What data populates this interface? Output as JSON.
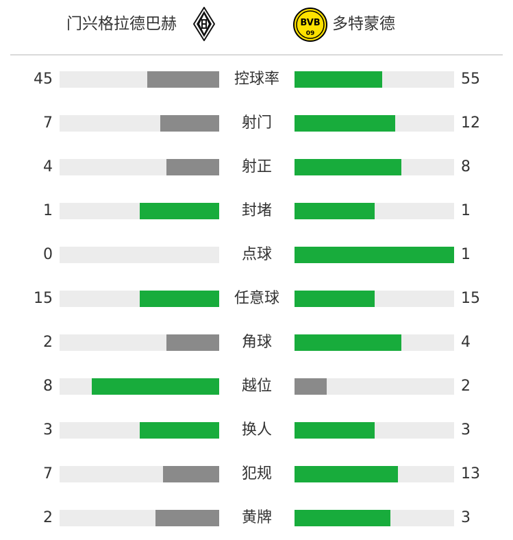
{
  "home_team": {
    "name": "门兴格拉德巴赫",
    "logo_icon": "gladbach-crest-icon"
  },
  "away_team": {
    "name": "多特蒙德",
    "logo_icon": "bvb-crest-icon",
    "logo_text": "BVB",
    "logo_year": "09"
  },
  "colors": {
    "winner": "#18ac3c",
    "loser": "#8a8a8a",
    "track": "#ececec"
  },
  "stats": [
    {
      "label": "控球率",
      "home": 45,
      "away": 55,
      "home_fill": 0.45,
      "away_fill": 0.55,
      "home_color": "grey",
      "away_color": "green"
    },
    {
      "label": "射门",
      "home": 7,
      "away": 12,
      "home_fill": 0.37,
      "away_fill": 0.63,
      "home_color": "grey",
      "away_color": "green"
    },
    {
      "label": "射正",
      "home": 4,
      "away": 8,
      "home_fill": 0.33,
      "away_fill": 0.67,
      "home_color": "grey",
      "away_color": "green"
    },
    {
      "label": "封堵",
      "home": 1,
      "away": 1,
      "home_fill": 0.5,
      "away_fill": 0.5,
      "home_color": "green",
      "away_color": "green"
    },
    {
      "label": "点球",
      "home": 0,
      "away": 1,
      "home_fill": 0,
      "away_fill": 1,
      "home_color": "grey",
      "away_color": "green"
    },
    {
      "label": "任意球",
      "home": 15,
      "away": 15,
      "home_fill": 0.5,
      "away_fill": 0.5,
      "home_color": "green",
      "away_color": "green"
    },
    {
      "label": "角球",
      "home": 2,
      "away": 4,
      "home_fill": 0.33,
      "away_fill": 0.67,
      "home_color": "grey",
      "away_color": "green"
    },
    {
      "label": "越位",
      "home": 8,
      "away": 2,
      "home_fill": 0.8,
      "away_fill": 0.2,
      "home_color": "green",
      "away_color": "grey"
    },
    {
      "label": "换人",
      "home": 3,
      "away": 3,
      "home_fill": 0.5,
      "away_fill": 0.5,
      "home_color": "green",
      "away_color": "green"
    },
    {
      "label": "犯规",
      "home": 7,
      "away": 13,
      "home_fill": 0.35,
      "away_fill": 0.65,
      "home_color": "grey",
      "away_color": "green"
    },
    {
      "label": "黄牌",
      "home": 2,
      "away": 3,
      "home_fill": 0.4,
      "away_fill": 0.6,
      "home_color": "grey",
      "away_color": "green"
    }
  ]
}
